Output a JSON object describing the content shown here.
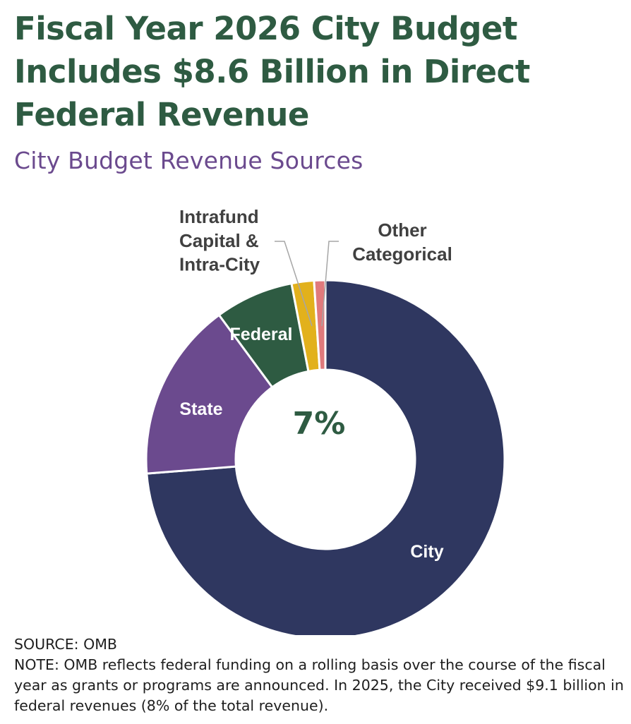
{
  "title": "Fiscal Year 2026 City Budget Includes $8.6 Billion in Direct Federal Revenue",
  "subtitle": "City Budget Revenue Sources",
  "center_label": "7%",
  "source": "SOURCE: OMB",
  "note": "NOTE: OMB reflects federal funding on a rolling basis over the course of the fiscal year as grants or programs are announced. In 2025, the City received $9.1 billion in federal revenues (8% of the total revenue).",
  "chart_data": {
    "type": "pie",
    "donut": true,
    "categories": [
      "City",
      "State",
      "Federal",
      "Intrafund Capital & Intra-City",
      "Other Categorical"
    ],
    "values": [
      73.0,
      16.0,
      7.0,
      2.0,
      1.0
    ],
    "colors": [
      "#2f3760",
      "#6b4a8e",
      "#2e5b42",
      "#e2b11c",
      "#e07a7c"
    ],
    "label_colors": [
      "#ffffff",
      "#ffffff",
      "#ffffff",
      "#404040",
      "#404040"
    ],
    "label_lines": [
      [
        "City"
      ],
      [
        "State"
      ],
      [
        "Federal"
      ],
      [
        "Intrafund",
        "Capital &",
        "Intra-City"
      ],
      [
        "Other",
        "Categorical"
      ]
    ]
  }
}
